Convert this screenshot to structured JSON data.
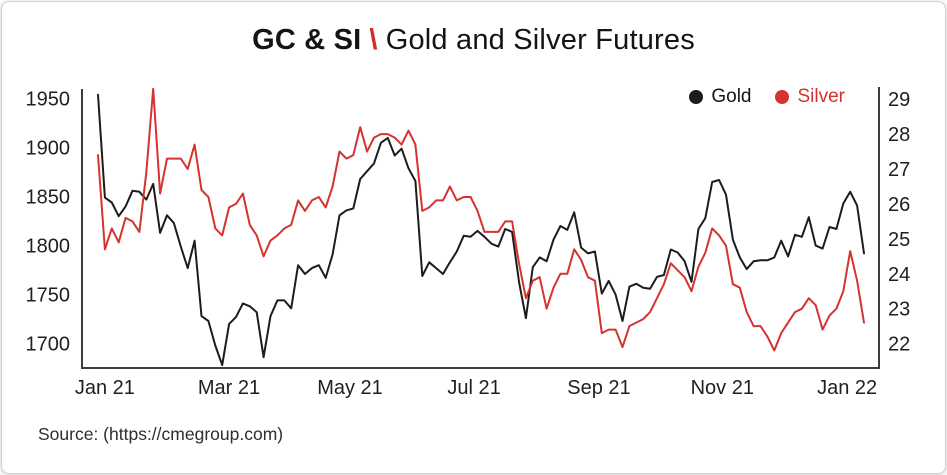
{
  "title": {
    "symbol": "GC & SI",
    "separator": "\\",
    "text": "Gold and Silver Futures"
  },
  "legend": {
    "gold": "Gold",
    "silver": "Silver"
  },
  "source": {
    "text": "Source: (https://cmegroup.com)"
  },
  "colors": {
    "gold_line": "#1c1c1c",
    "silver_line": "#d4332f",
    "axis": "#3d3d3d",
    "title_slash": "#d62b27"
  },
  "chart_data": {
    "type": "line",
    "title": "GC & SI \\ Gold and Silver Futures",
    "grid": false,
    "legend_position": "top-right",
    "x_ticks": {
      "labels": [
        "Jan 21",
        "Mar 21",
        "May 21",
        "Jul 21",
        "Sep 21",
        "Nov 21",
        "Jan 22"
      ],
      "fractions": [
        0.009,
        0.171,
        0.329,
        0.491,
        0.654,
        0.815,
        0.978
      ]
    },
    "left_axis": {
      "series": "Gold",
      "ticks": [
        1950,
        1900,
        1850,
        1800,
        1750,
        1700
      ],
      "range": [
        1675,
        1962
      ]
    },
    "right_axis": {
      "series": "Silver",
      "ticks": [
        29,
        28,
        27,
        26,
        25,
        24,
        23,
        22
      ],
      "range": [
        21.3,
        29.35
      ]
    },
    "series": [
      {
        "name": "Gold",
        "axis": "left",
        "color": "#1c1c1c",
        "values": [
          1954,
          1849,
          1844,
          1830,
          1840,
          1856,
          1855,
          1847,
          1863,
          1813,
          1831,
          1823,
          1799,
          1777,
          1805,
          1728,
          1723,
          1698,
          1678,
          1720,
          1727,
          1741,
          1738,
          1732,
          1686,
          1728,
          1744,
          1744,
          1736,
          1780,
          1771,
          1777,
          1780,
          1767,
          1791,
          1831,
          1836,
          1838,
          1868,
          1876,
          1884,
          1905,
          1910,
          1892,
          1899,
          1879,
          1866,
          1769,
          1783,
          1777,
          1771,
          1783,
          1794,
          1810,
          1809,
          1815,
          1809,
          1802,
          1799,
          1817,
          1814,
          1763,
          1726,
          1778,
          1788,
          1784,
          1806,
          1820,
          1816,
          1834,
          1798,
          1792,
          1794,
          1751,
          1764,
          1750,
          1723,
          1758,
          1761,
          1757,
          1756,
          1768,
          1770,
          1796,
          1793,
          1784,
          1763,
          1817,
          1828,
          1865,
          1867,
          1852,
          1806,
          1788,
          1776,
          1784,
          1785,
          1785,
          1788,
          1805,
          1789,
          1811,
          1809,
          1829,
          1800,
          1797,
          1819,
          1817,
          1843,
          1855,
          1841,
          1792
        ]
      },
      {
        "name": "Silver",
        "axis": "right",
        "color": "#d4332f",
        "values": [
          27.4,
          24.7,
          25.3,
          24.9,
          25.6,
          25.5,
          25.2,
          26.9,
          29.3,
          26.3,
          27.3,
          27.3,
          27.3,
          27.0,
          27.7,
          26.4,
          26.2,
          25.3,
          25.1,
          25.9,
          26.0,
          26.3,
          25.4,
          25.1,
          24.5,
          24.95,
          25.1,
          25.3,
          25.4,
          26.1,
          25.8,
          26.1,
          26.2,
          25.9,
          26.5,
          27.5,
          27.3,
          27.4,
          28.2,
          27.5,
          27.9,
          28.0,
          28.0,
          27.9,
          27.7,
          28.1,
          27.7,
          25.8,
          25.9,
          26.1,
          26.1,
          26.5,
          26.1,
          26.2,
          26.2,
          25.8,
          25.2,
          25.2,
          25.2,
          25.5,
          25.5,
          24.3,
          23.3,
          23.8,
          23.9,
          23.0,
          23.6,
          24.0,
          24.0,
          24.7,
          24.4,
          23.9,
          23.8,
          22.3,
          22.4,
          22.4,
          21.9,
          22.5,
          22.6,
          22.7,
          22.9,
          23.3,
          23.7,
          24.3,
          24.1,
          23.9,
          23.5,
          24.2,
          24.6,
          25.3,
          25.1,
          24.8,
          23.7,
          23.6,
          22.9,
          22.5,
          22.5,
          22.2,
          21.8,
          22.3,
          22.6,
          22.9,
          23.0,
          23.3,
          23.1,
          22.4,
          22.8,
          23.0,
          23.5,
          24.65,
          23.8,
          22.6
        ]
      }
    ]
  }
}
